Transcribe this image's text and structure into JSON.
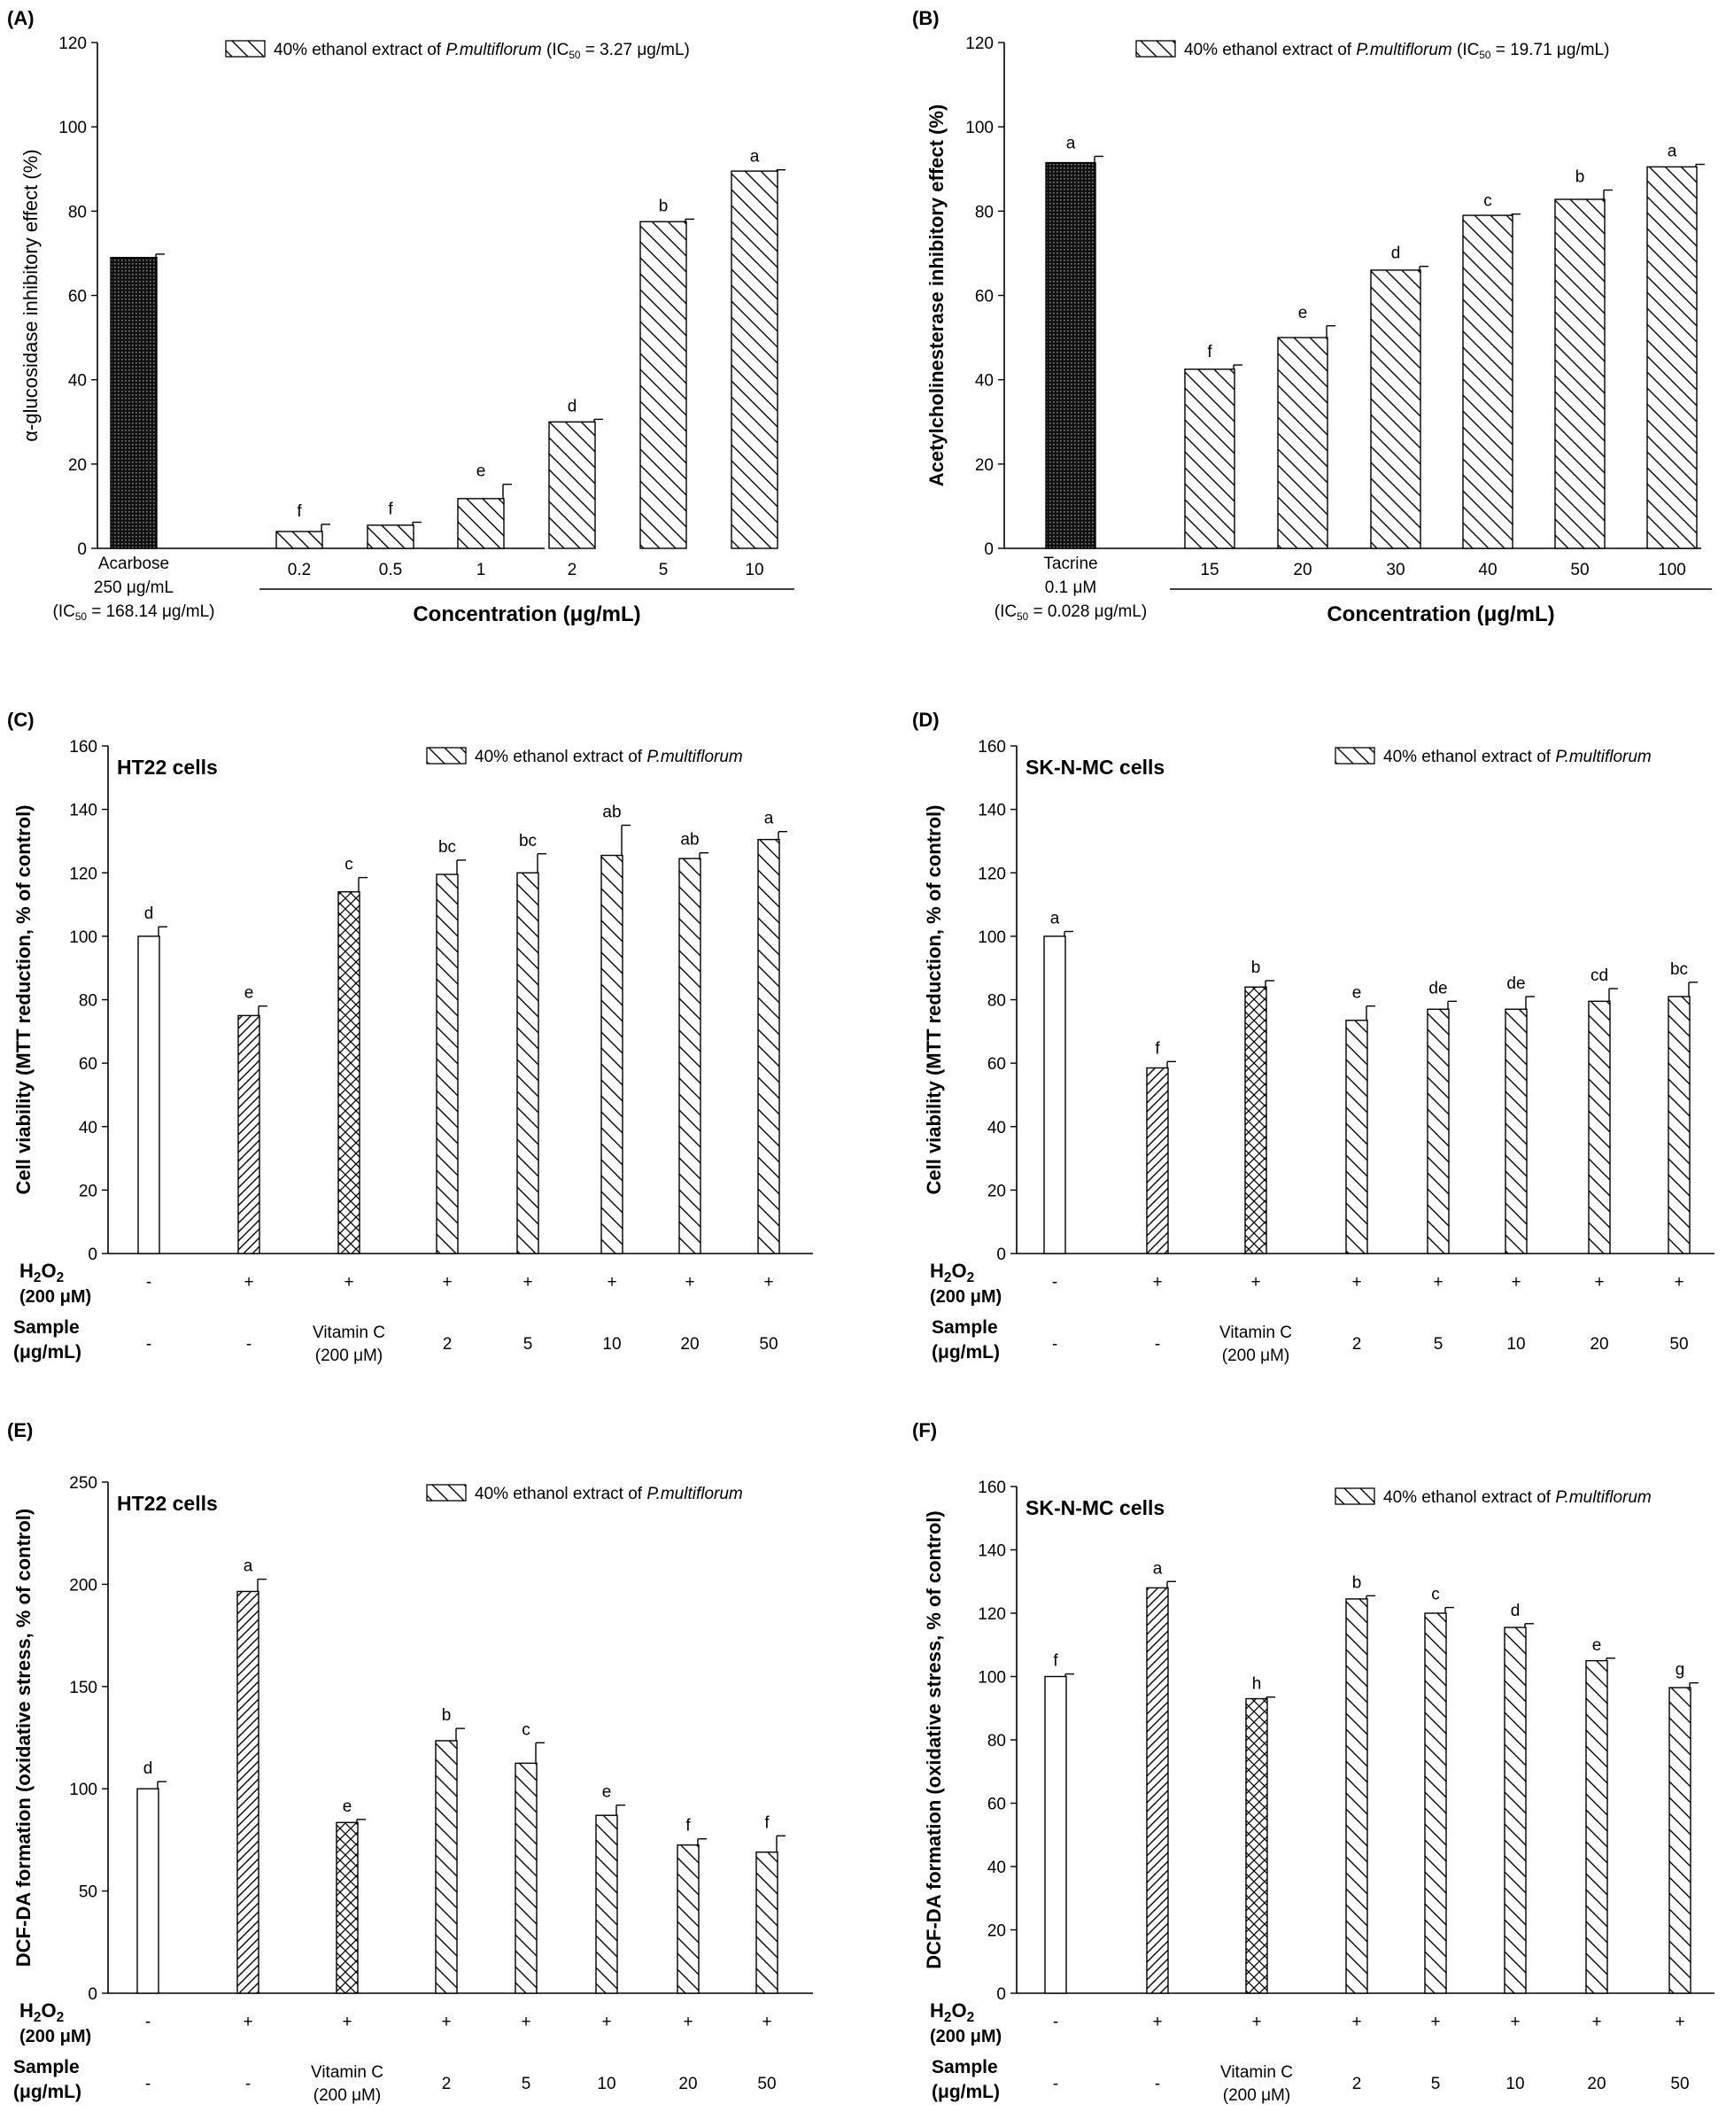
{
  "figure": {
    "panels": [
      "A",
      "B",
      "C",
      "D",
      "E",
      "F"
    ]
  },
  "colors": {
    "ink": "#000000",
    "background": "#ffffff"
  },
  "chart_data": [
    {
      "id": "A",
      "type": "bar",
      "panel_label": "(A)",
      "legend": {
        "text": "40% ethanol extract of P.multiflorum (IC50 = 3.27 μg/mL)",
        "placement": "top-right"
      },
      "ylabel": "α-glucosidase inhibitory effect (%)",
      "xlabel": "Concentration (μg/mL)",
      "ylim": [
        0,
        120
      ],
      "yticks": [
        0,
        20,
        40,
        60,
        80,
        100,
        120
      ],
      "control_label": [
        "Acarbose",
        "250 μg/mL",
        "(IC50 = 168.14 μg/mL)"
      ],
      "bars": [
        {
          "label": "Acarbose",
          "value": 69,
          "error": 0.8,
          "letter": "",
          "pattern": "dense"
        },
        {
          "label": "0.2",
          "value": 4,
          "error": 1.7,
          "letter": "f",
          "pattern": "diag"
        },
        {
          "label": "0.5",
          "value": 5.5,
          "error": 0.7,
          "letter": "f",
          "pattern": "diag"
        },
        {
          "label": "1",
          "value": 11.8,
          "error": 3.4,
          "letter": "e",
          "pattern": "diag"
        },
        {
          "label": "2",
          "value": 30,
          "error": 0.6,
          "letter": "d",
          "pattern": "diag"
        },
        {
          "label": "5",
          "value": 77.5,
          "error": 0.6,
          "letter": "b",
          "pattern": "diag"
        },
        {
          "label": "10",
          "value": 89.5,
          "error": 0.3,
          "letter": "a",
          "pattern": "diag"
        }
      ]
    },
    {
      "id": "B",
      "type": "bar",
      "panel_label": "(B)",
      "legend": {
        "text": "40% ethanol extract of P.multiflorum (IC50 = 19.71 μg/mL)",
        "placement": "top-right"
      },
      "ylabel": "Acetylcholinesterase inhibitory effect (%)",
      "xlabel": "Concentration (μg/mL)",
      "ylim": [
        0,
        120
      ],
      "yticks": [
        0,
        20,
        40,
        60,
        80,
        100,
        120
      ],
      "control_label": [
        "Tacrine",
        "0.1 μM",
        "(IC50 = 0.028 μg/mL)"
      ],
      "bars": [
        {
          "label": "Tacrine",
          "value": 91.5,
          "error": 1.5,
          "letter": "a",
          "pattern": "dense"
        },
        {
          "label": "15",
          "value": 42.5,
          "error": 1,
          "letter": "f",
          "pattern": "diag"
        },
        {
          "label": "20",
          "value": 50,
          "error": 2.8,
          "letter": "e",
          "pattern": "diag"
        },
        {
          "label": "30",
          "value": 66,
          "error": 0.9,
          "letter": "d",
          "pattern": "diag"
        },
        {
          "label": "40",
          "value": 79,
          "error": 0.3,
          "letter": "c",
          "pattern": "diag"
        },
        {
          "label": "50",
          "value": 82.8,
          "error": 2.2,
          "letter": "b",
          "pattern": "diag"
        },
        {
          "label": "100",
          "value": 90.5,
          "error": 0.6,
          "letter": "a",
          "pattern": "diag"
        }
      ]
    },
    {
      "id": "C",
      "type": "bar",
      "panel_label": "(C)",
      "cell_label": "HT22 cells",
      "legend": {
        "text": "40% ethanol extract of P.multiflorum",
        "placement": "top-right"
      },
      "ylabel": "Cell viability (MTT reduction, % of control)",
      "ylim": [
        0,
        160
      ],
      "yticks": [
        0,
        20,
        40,
        60,
        80,
        100,
        120,
        140,
        160
      ],
      "row_labels": {
        "h2o2": [
          "H2O2",
          "(200 μM)"
        ],
        "sample": [
          "Sample",
          "(μg/mL)"
        ]
      },
      "h2o2": [
        "-",
        "+",
        "+",
        "+",
        "+",
        "+",
        "+",
        "+"
      ],
      "sample": [
        "-",
        "-",
        "Vitamin C\n(200 μM)",
        "2",
        "5",
        "10",
        "20",
        "50"
      ],
      "bars": [
        {
          "value": 100,
          "error": 3,
          "letter": "d",
          "pattern": "none"
        },
        {
          "value": 75,
          "error": 3,
          "letter": "e",
          "pattern": "hatch"
        },
        {
          "value": 114,
          "error": 4.5,
          "letter": "c",
          "pattern": "cross"
        },
        {
          "value": 119.5,
          "error": 4.5,
          "letter": "bc",
          "pattern": "diag"
        },
        {
          "value": 120,
          "error": 6,
          "letter": "bc",
          "pattern": "diag"
        },
        {
          "value": 125.5,
          "error": 9.5,
          "letter": "ab",
          "pattern": "diag"
        },
        {
          "value": 124.5,
          "error": 1.8,
          "letter": "ab",
          "pattern": "diag"
        },
        {
          "value": 130.5,
          "error": 2.5,
          "letter": "a",
          "pattern": "diag"
        }
      ]
    },
    {
      "id": "D",
      "type": "bar",
      "panel_label": "(D)",
      "cell_label": "SK-N-MC cells",
      "legend": {
        "text": "40% ethanol extract of P.multiflorum",
        "placement": "top-right"
      },
      "ylabel": "Cell viability (MTT reduction, % of control)",
      "ylim": [
        0,
        160
      ],
      "yticks": [
        0,
        20,
        40,
        60,
        80,
        100,
        120,
        140,
        160
      ],
      "row_labels": {
        "h2o2": [
          "H2O2",
          "(200 μM)"
        ],
        "sample": [
          "Sample",
          "(μg/mL)"
        ]
      },
      "h2o2": [
        "-",
        "+",
        "+",
        "+",
        "+",
        "+",
        "+",
        "+"
      ],
      "sample": [
        "-",
        "-",
        "Vitamin C\n(200 μM)",
        "2",
        "5",
        "10",
        "20",
        "50"
      ],
      "bars": [
        {
          "value": 100,
          "error": 1.5,
          "letter": "a",
          "pattern": "none"
        },
        {
          "value": 58.5,
          "error": 2,
          "letter": "f",
          "pattern": "hatch"
        },
        {
          "value": 84,
          "error": 2,
          "letter": "b",
          "pattern": "cross"
        },
        {
          "value": 73.5,
          "error": 4.5,
          "letter": "e",
          "pattern": "diag"
        },
        {
          "value": 77,
          "error": 2.5,
          "letter": "de",
          "pattern": "diag"
        },
        {
          "value": 77,
          "error": 4,
          "letter": "de",
          "pattern": "diag"
        },
        {
          "value": 79.5,
          "error": 4,
          "letter": "cd",
          "pattern": "diag"
        },
        {
          "value": 81,
          "error": 4.5,
          "letter": "bc",
          "pattern": "diag"
        }
      ]
    },
    {
      "id": "E",
      "type": "bar",
      "panel_label": "(E)",
      "cell_label": "HT22 cells",
      "legend": {
        "text": "40% ethanol extract of P.multiflorum",
        "placement": "top-right"
      },
      "ylabel": "DCF-DA formation (oxidative stress, % of control)",
      "ylim": [
        0,
        250
      ],
      "yticks": [
        0,
        50,
        100,
        150,
        200,
        250
      ],
      "row_labels": {
        "h2o2": [
          "H2O2",
          "(200 μM)"
        ],
        "sample": [
          "Sample",
          "(μg/mL)"
        ]
      },
      "h2o2": [
        "-",
        "+",
        "+",
        "+",
        "+",
        "+",
        "+",
        "+"
      ],
      "sample": [
        "-",
        "-",
        "Vitamin C\n(200 μM)",
        "2",
        "5",
        "10",
        "20",
        "50"
      ],
      "bars": [
        {
          "value": 100,
          "error": 3.5,
          "letter": "d",
          "pattern": "none"
        },
        {
          "value": 196.5,
          "error": 6,
          "letter": "a",
          "pattern": "hatch"
        },
        {
          "value": 83.5,
          "error": 1.5,
          "letter": "e",
          "pattern": "cross"
        },
        {
          "value": 123.5,
          "error": 6,
          "letter": "b",
          "pattern": "diag"
        },
        {
          "value": 112.5,
          "error": 10,
          "letter": "c",
          "pattern": "diag"
        },
        {
          "value": 87,
          "error": 5,
          "letter": "e",
          "pattern": "diag"
        },
        {
          "value": 72.5,
          "error": 3,
          "letter": "f",
          "pattern": "diag"
        },
        {
          "value": 69,
          "error": 8,
          "letter": "f",
          "pattern": "diag"
        }
      ]
    },
    {
      "id": "F",
      "type": "bar",
      "panel_label": "(F)",
      "cell_label": "SK-N-MC cells",
      "legend": {
        "text": "40% ethanol extract of P.multiflorum",
        "placement": "top-right"
      },
      "ylabel": "DCF-DA formation (oxidative stress, % of control)",
      "ylim": [
        0,
        160
      ],
      "yticks": [
        0,
        20,
        40,
        60,
        80,
        100,
        120,
        140,
        160
      ],
      "row_labels": {
        "h2o2": [
          "H2O2",
          "(200 μM)"
        ],
        "sample": [
          "Sample",
          "(μg/mL)"
        ]
      },
      "h2o2": [
        "-",
        "+",
        "+",
        "+",
        "+",
        "+",
        "+",
        "+"
      ],
      "sample": [
        "-",
        "-",
        "Vitamin C\n(200 μM)",
        "2",
        "5",
        "10",
        "20",
        "50"
      ],
      "bars": [
        {
          "value": 100,
          "error": 0.8,
          "letter": "f",
          "pattern": "none"
        },
        {
          "value": 128,
          "error": 2,
          "letter": "a",
          "pattern": "hatch"
        },
        {
          "value": 93,
          "error": 0.5,
          "letter": "h",
          "pattern": "cross"
        },
        {
          "value": 124.5,
          "error": 1,
          "letter": "b",
          "pattern": "diag"
        },
        {
          "value": 120,
          "error": 1.8,
          "letter": "c",
          "pattern": "diag"
        },
        {
          "value": 115.5,
          "error": 1.2,
          "letter": "d",
          "pattern": "diag"
        },
        {
          "value": 105,
          "error": 0.8,
          "letter": "e",
          "pattern": "diag"
        },
        {
          "value": 96.5,
          "error": 1.5,
          "letter": "g",
          "pattern": "diag"
        }
      ]
    }
  ]
}
